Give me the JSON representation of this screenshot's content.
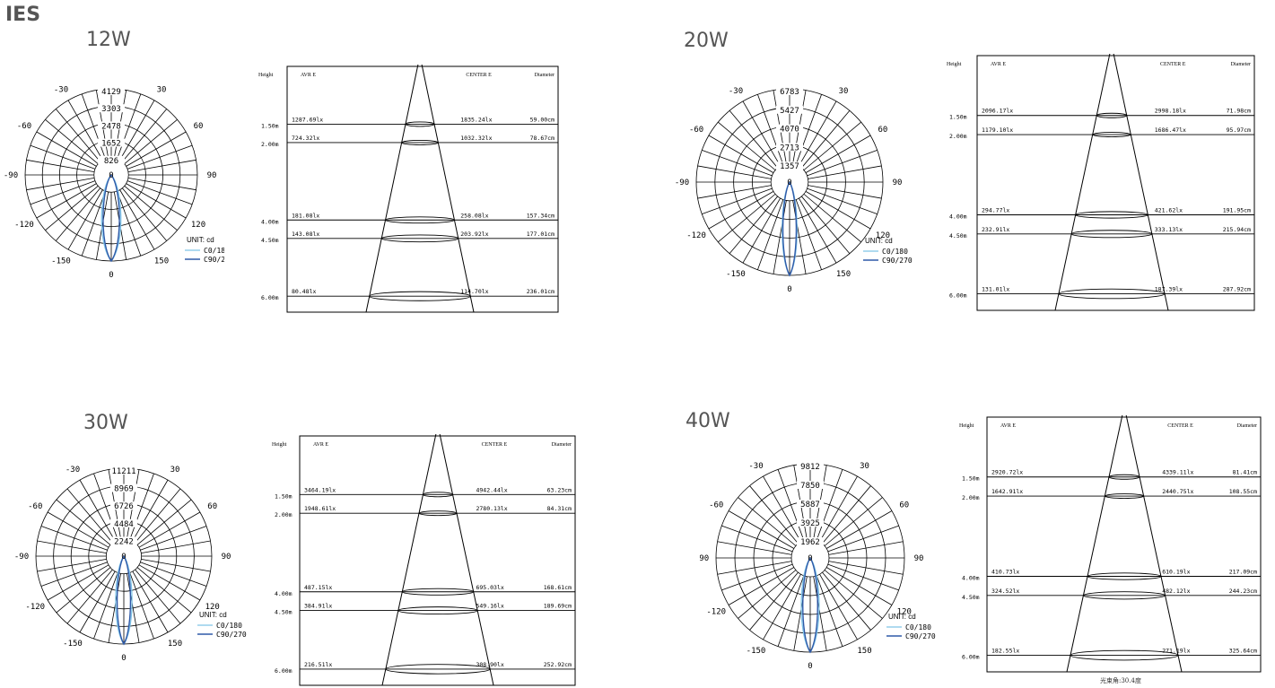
{
  "page_title": "IES",
  "colors": {
    "c0": "#7fc4e8",
    "c90": "#2f5aa8",
    "grid": "#000000"
  },
  "legend": {
    "unit": "UNIT: cd",
    "c0": "C0/180",
    "c90": "C90/270"
  },
  "angles": [
    "-150",
    "150",
    "-120",
    "120",
    "-90",
    "90",
    "-60",
    "60",
    "-30",
    "30",
    "0",
    "0"
  ],
  "cone_headers": {
    "height": "Height",
    "avr": "AVR E",
    "center": "CENTER E",
    "diameter": "Diameter"
  },
  "beam_note": "光束角:30.4度",
  "panels": [
    {
      "title": "12W",
      "ring_values": [
        "4129",
        "3303",
        "2478",
        "1652",
        "826"
      ],
      "rows": [
        {
          "height": "1.50m",
          "avr": "1287.69lx",
          "center": "1835.24lx",
          "diameter": "59.00cm"
        },
        {
          "height": "2.00m",
          "avr": "724.32lx",
          "center": "1032.32lx",
          "diameter": "78.67cm"
        },
        {
          "height": "4.00m",
          "avr": "181.08lx",
          "center": "258.08lx",
          "diameter": "157.34cm"
        },
        {
          "height": "4.50m",
          "avr": "143.08lx",
          "center": "203.92lx",
          "diameter": "177.01cm"
        },
        {
          "height": "6.00m",
          "avr": "80.48lx",
          "center": "114.70lx",
          "diameter": "236.01cm"
        }
      ]
    },
    {
      "title": "20W",
      "ring_values": [
        "6783",
        "5427",
        "4070",
        "2713",
        "1357"
      ],
      "rows": [
        {
          "height": "1.50m",
          "avr": "2096.17lx",
          "center": "2998.18lx",
          "diameter": "71.98cm"
        },
        {
          "height": "2.00m",
          "avr": "1179.10lx",
          "center": "1686.47lx",
          "diameter": "95.97cm"
        },
        {
          "height": "4.00m",
          "avr": "294.77lx",
          "center": "421.62lx",
          "diameter": "191.95cm"
        },
        {
          "height": "4.50m",
          "avr": "232.91lx",
          "center": "333.13lx",
          "diameter": "215.94cm"
        },
        {
          "height": "6.00m",
          "avr": "131.01lx",
          "center": "187.39lx",
          "diameter": "287.92cm"
        }
      ]
    },
    {
      "title": "30W",
      "ring_values": [
        "11211",
        "8969",
        "6726",
        "4484",
        "2242"
      ],
      "rows": [
        {
          "height": "1.50m",
          "avr": "3464.19lx",
          "center": "4942.44lx",
          "diameter": "63.23cm"
        },
        {
          "height": "2.00m",
          "avr": "1948.61lx",
          "center": "2780.13lx",
          "diameter": "84.31cm"
        },
        {
          "height": "4.00m",
          "avr": "487.15lx",
          "center": "695.03lx",
          "diameter": "168.61cm"
        },
        {
          "height": "4.50m",
          "avr": "384.91lx",
          "center": "549.16lx",
          "diameter": "189.69cm"
        },
        {
          "height": "6.00m",
          "avr": "216.51lx",
          "center": "308.90lx",
          "diameter": "252.92cm"
        }
      ]
    },
    {
      "title": "40W",
      "ring_values": [
        "9812",
        "7850",
        "5887",
        "3925",
        "1962"
      ],
      "rows": [
        {
          "height": "1.50m",
          "avr": "2920.72lx",
          "center": "4339.11lx",
          "diameter": "81.41cm"
        },
        {
          "height": "2.00m",
          "avr": "1642.91lx",
          "center": "2440.75lx",
          "diameter": "108.55cm"
        },
        {
          "height": "4.00m",
          "avr": "410.73lx",
          "center": "610.19lx",
          "diameter": "217.09cm"
        },
        {
          "height": "4.50m",
          "avr": "324.52lx",
          "center": "482.12lx",
          "diameter": "244.23cm"
        },
        {
          "height": "6.00m",
          "avr": "182.55lx",
          "center": "271.19lx",
          "diameter": "325.64cm"
        }
      ]
    }
  ]
}
